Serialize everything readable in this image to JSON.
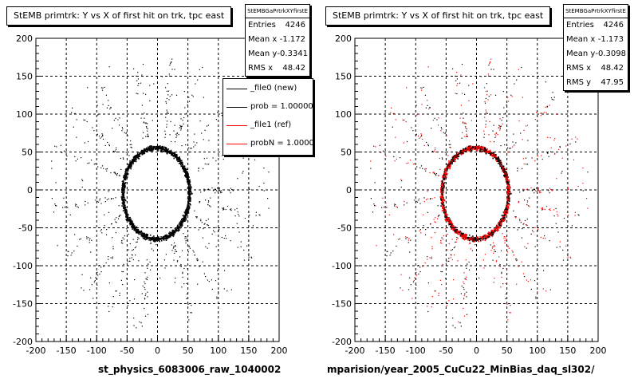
{
  "colors": {
    "file0": "#000000",
    "file1": "#ff0000",
    "background": "#ffffff"
  },
  "chart_data": [
    {
      "type": "scatter",
      "title": "StEMB primtrk: Y vs X of first hit on trk, tpc east",
      "xlabel": "",
      "ylabel": "",
      "xlim": [
        -200,
        200
      ],
      "ylim": [
        -200,
        200
      ],
      "x_ticks": [
        -200,
        -150,
        -100,
        -50,
        0,
        50,
        100,
        150,
        200
      ],
      "y_ticks": [
        -200,
        -150,
        -100,
        -50,
        0,
        50,
        100,
        150,
        200
      ],
      "grid": true,
      "source_name": "st_physics_6083006_raw_1040002",
      "stats": {
        "header": "StEMBGaPrtrkXYfirstE",
        "rows": [
          {
            "label": "Entries",
            "value": "4246"
          },
          {
            "label": "Mean x",
            "value": "-1.172"
          },
          {
            "label": "Mean y",
            "value": "-0.3341"
          },
          {
            "label": "RMS x",
            "value": "48.42"
          }
        ]
      },
      "legend": {
        "placement": "top-right",
        "entries": [
          {
            "label": "_file0 (new)",
            "color": "#000000"
          },
          {
            "label": "prob = 1.000000",
            "color": "#000000"
          },
          {
            "label": "_file1 (ref)",
            "color": "#ff0000"
          },
          {
            "label": "probN = 1.000000",
            "color": "#ff0000"
          }
        ]
      },
      "series": [
        {
          "color": "#000000",
          "ring": {
            "center": [
              -3,
              -4
            ],
            "rx": 55,
            "ry": 60,
            "width": 9
          }
        }
      ]
    },
    {
      "type": "scatter",
      "title": "StEMB primtrk: Y vs X of first hit on trk, tpc east",
      "xlabel": "",
      "ylabel": "",
      "xlim": [
        -200,
        200
      ],
      "ylim": [
        -200,
        200
      ],
      "x_ticks": [
        -200,
        -150,
        -100,
        -50,
        0,
        50,
        100,
        150,
        200
      ],
      "y_ticks": [
        -200,
        -150,
        -100,
        -50,
        0,
        50,
        100,
        150,
        200
      ],
      "grid": true,
      "source_name": "mparision/year_2005_CuCu22_MinBias_daq_sl302/",
      "stats": {
        "header": "StEMBGaPrtrkXYfirstE",
        "rows": [
          {
            "label": "Entries",
            "value": "4246"
          },
          {
            "label": "Mean x",
            "value": "-1.173"
          },
          {
            "label": "Mean y",
            "value": "-0.3098"
          },
          {
            "label": "RMS x",
            "value": "48.42"
          },
          {
            "label": "RMS y",
            "value": "47.95"
          }
        ]
      },
      "series": [
        {
          "color": "#000000",
          "ring": {
            "center": [
              -3,
              -4
            ],
            "rx": 55,
            "ry": 60,
            "width": 9
          }
        },
        {
          "color": "#ff0000",
          "ring": {
            "center": [
              -3,
              -4
            ],
            "rx": 55,
            "ry": 60,
            "width": 9
          }
        }
      ]
    }
  ]
}
